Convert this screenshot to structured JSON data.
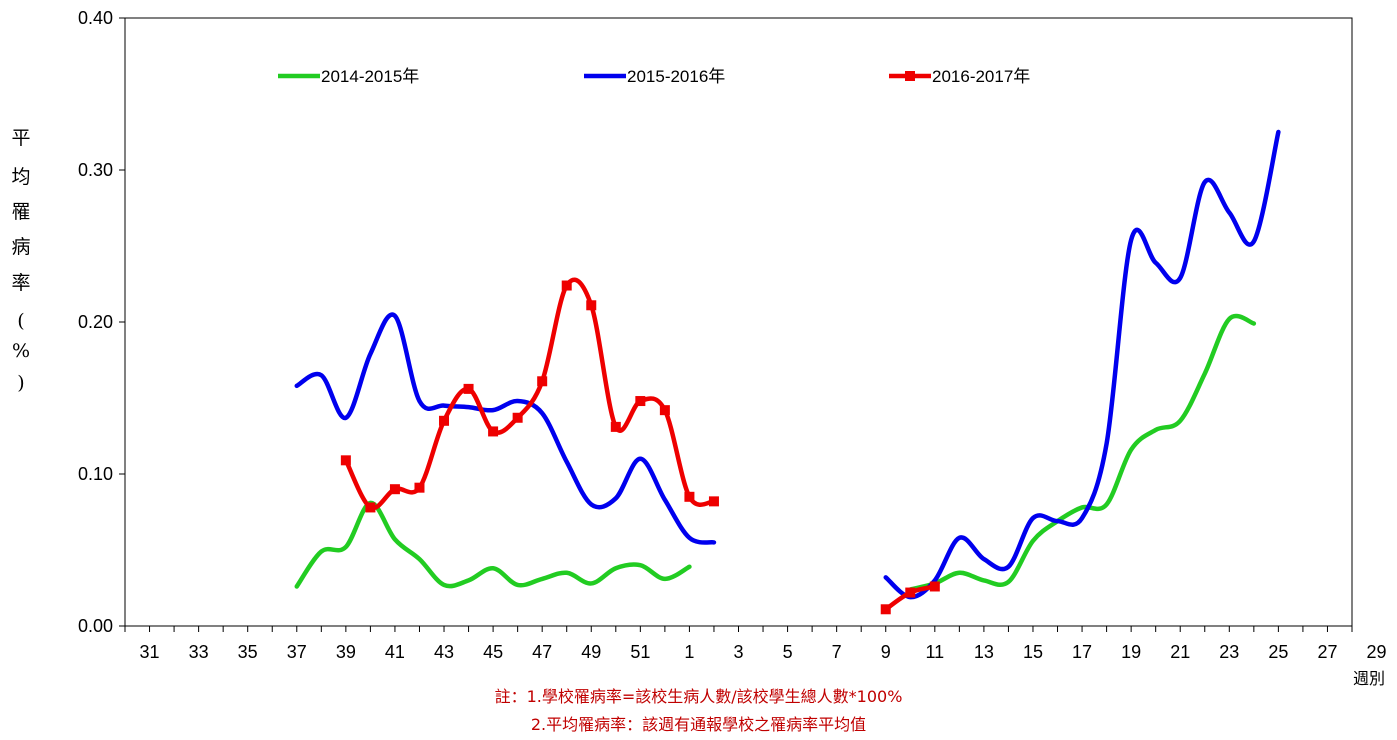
{
  "chart_data": {
    "type": "line",
    "ylabel": "平均罹病率(%)",
    "xlabel": "週別",
    "ylim": [
      0,
      0.4
    ],
    "yticks": [
      "0.00",
      "0.10",
      "0.20",
      "0.30",
      "0.40"
    ],
    "xtick_labels": [
      "31",
      "33",
      "35",
      "37",
      "39",
      "41",
      "43",
      "45",
      "47",
      "49",
      "51",
      "1",
      "3",
      "5",
      "7",
      "9",
      "11",
      "13",
      "15",
      "17",
      "19",
      "21",
      "23",
      "25",
      "27",
      "29"
    ],
    "grid": false,
    "legend": "top",
    "series": [
      {
        "name": "2014-2015年",
        "color": "#22cc22",
        "marker": false,
        "segments": [
          [
            [
              37,
              0.026
            ],
            [
              38,
              0.049
            ],
            [
              39,
              0.052
            ],
            [
              40,
              0.081
            ],
            [
              41,
              0.057
            ],
            [
              42,
              0.044
            ],
            [
              43,
              0.027
            ],
            [
              44,
              0.03
            ],
            [
              45,
              0.038
            ],
            [
              46,
              0.027
            ],
            [
              47,
              0.031
            ],
            [
              48,
              0.035
            ],
            [
              49,
              0.028
            ],
            [
              50,
              0.038
            ],
            [
              51,
              0.04
            ],
            [
              52,
              0.031
            ],
            [
              53,
              0.039
            ]
          ],
          [
            [
              62,
              0.024
            ],
            [
              63,
              0.028
            ],
            [
              64,
              0.035
            ],
            [
              65,
              0.03
            ],
            [
              66,
              0.029
            ],
            [
              67,
              0.056
            ],
            [
              68,
              0.069
            ],
            [
              69,
              0.078
            ],
            [
              70,
              0.08
            ],
            [
              71,
              0.116
            ],
            [
              72,
              0.129
            ],
            [
              73,
              0.135
            ],
            [
              74,
              0.166
            ],
            [
              75,
              0.202
            ],
            [
              76,
              0.199
            ]
          ]
        ]
      },
      {
        "name": "2015-2016年",
        "color": "#0000ee",
        "marker": false,
        "segments": [
          [
            [
              37,
              0.158
            ],
            [
              38,
              0.165
            ],
            [
              39,
              0.137
            ],
            [
              40,
              0.179
            ],
            [
              41,
              0.204
            ],
            [
              42,
              0.148
            ],
            [
              43,
              0.145
            ],
            [
              44,
              0.144
            ],
            [
              45,
              0.142
            ],
            [
              46,
              0.148
            ],
            [
              47,
              0.14
            ],
            [
              48,
              0.108
            ],
            [
              49,
              0.08
            ],
            [
              50,
              0.084
            ],
            [
              51,
              0.11
            ],
            [
              52,
              0.083
            ],
            [
              53,
              0.058
            ],
            [
              54,
              0.055
            ]
          ],
          [
            [
              61,
              0.032
            ],
            [
              62,
              0.019
            ],
            [
              63,
              0.03
            ],
            [
              64,
              0.058
            ],
            [
              65,
              0.044
            ],
            [
              66,
              0.039
            ],
            [
              67,
              0.071
            ],
            [
              68,
              0.069
            ],
            [
              69,
              0.071
            ],
            [
              70,
              0.12
            ],
            [
              71,
              0.254
            ],
            [
              72,
              0.239
            ],
            [
              73,
              0.229
            ],
            [
              74,
              0.292
            ],
            [
              75,
              0.272
            ],
            [
              76,
              0.253
            ],
            [
              77,
              0.325
            ]
          ]
        ]
      },
      {
        "name": "2016-2017年",
        "color": "#ee0000",
        "marker": true,
        "segments": [
          [
            [
              39,
              0.109
            ],
            [
              40,
              0.078
            ],
            [
              41,
              0.09
            ],
            [
              42,
              0.091
            ],
            [
              43,
              0.135
            ],
            [
              44,
              0.156
            ],
            [
              45,
              0.128
            ],
            [
              46,
              0.137
            ],
            [
              47,
              0.161
            ],
            [
              48,
              0.224
            ],
            [
              49,
              0.211
            ],
            [
              50,
              0.131
            ],
            [
              51,
              0.148
            ],
            [
              52,
              0.142
            ],
            [
              53,
              0.085
            ],
            [
              54,
              0.082
            ]
          ],
          [
            [
              61,
              0.011
            ],
            [
              62,
              0.022
            ],
            [
              63,
              0.026
            ]
          ]
        ]
      }
    ]
  },
  "notes": {
    "line1": "註：1.學校罹病率=該校生病人數/該校學生總人數*100%",
    "line2": "2.平均罹病率：該週有通報學校之罹病率平均值"
  }
}
